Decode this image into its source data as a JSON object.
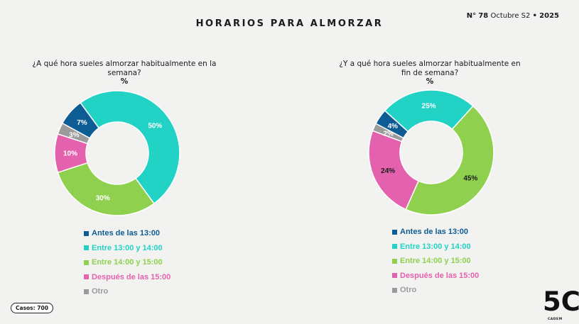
{
  "header": {
    "title": "HORARIOS PARA ALMORZAR",
    "issue_prefix": "N°",
    "issue_number": "78",
    "issue_period": "Octubre S2",
    "issue_sep": "•",
    "issue_year": "2025"
  },
  "footer": {
    "cases": "Casos: 700",
    "logo_text": "5C",
    "logo_sub": "CADEM"
  },
  "chart_data": [
    {
      "type": "pie",
      "title": "¿A qué hora sueles almorzar habitualmente en la semana?",
      "unit_label": "%",
      "categories": [
        "Antes de las 13:00",
        "Entre 13:00 y 14:00",
        "Entre 14:00 y 15:00",
        "Después de las 15:00",
        "Otro"
      ],
      "values": [
        7,
        50,
        30,
        10,
        3
      ],
      "labels": [
        "7%",
        "50%",
        "30%",
        "10%",
        "3%"
      ],
      "colors": [
        "#0e5c94",
        "#22d3c5",
        "#8fd14f",
        "#e462ad",
        "#9b9b9b"
      ],
      "label_colors": [
        "#ffffff",
        "#ffffff",
        "#ffffff",
        "#ffffff",
        "#ffffff"
      ]
    },
    {
      "type": "pie",
      "title": "¿Y a qué hora sueles almorzar habitualmente en fin de semana?",
      "unit_label": "%",
      "categories": [
        "Antes de las 13:00",
        "Entre 13:00 y 14:00",
        "Entre 14:00 y 15:00",
        "Después de las 15:00",
        "Otro"
      ],
      "values": [
        4,
        25,
        45,
        24,
        2
      ],
      "labels": [
        "4%",
        "25%",
        "45%",
        "24%",
        "2%"
      ],
      "colors": [
        "#0e5c94",
        "#22d3c5",
        "#8fd14f",
        "#e462ad",
        "#9b9b9b"
      ],
      "label_colors": [
        "#ffffff",
        "#ffffff",
        "#1a1a1a",
        "#1a1a1a",
        "#ffffff"
      ]
    }
  ]
}
